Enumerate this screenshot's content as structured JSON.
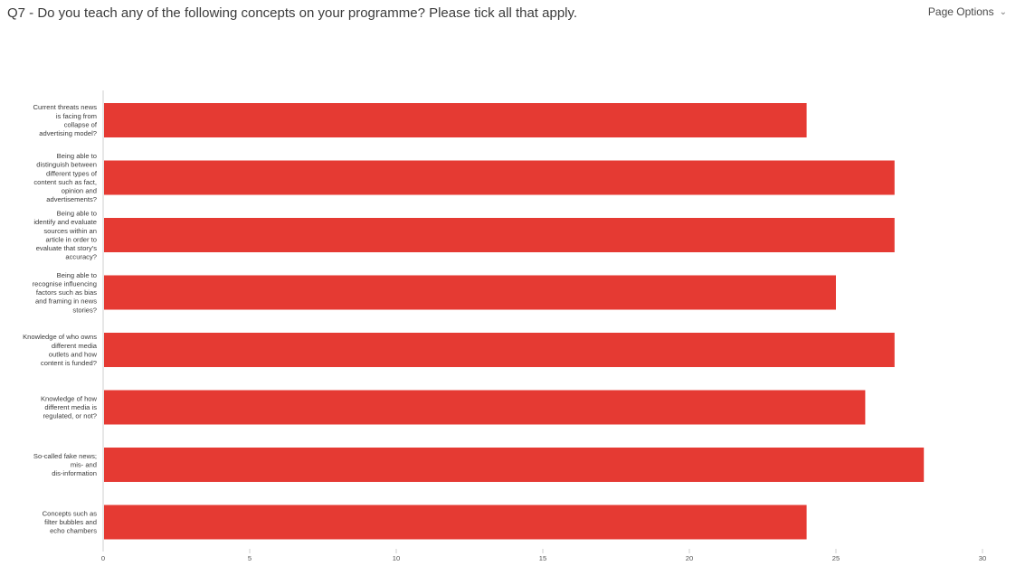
{
  "header": {
    "question_title": "Q7 - Do you teach any of the following concepts on your programme? Please tick all that apply.",
    "page_options_label": "Page Options",
    "page_options_icon": "chevron-down-icon"
  },
  "colors": {
    "bar": "#e53a33",
    "axis": "#cfcfcf"
  },
  "chart_data": {
    "type": "bar",
    "orientation": "horizontal",
    "categories": [
      [
        "Current threats news",
        "is facing from",
        "collapse of",
        "advertising model?"
      ],
      [
        "Being able to",
        "distinguish between",
        "different types of",
        "content such as fact,",
        "opinion and",
        "advertisements?"
      ],
      [
        "Being able to",
        "identify and evaluate",
        "sources within an",
        "article in order to",
        "evaluate that story's",
        "accuracy?"
      ],
      [
        "Being able to",
        "recognise influencing",
        "factors such as bias",
        "and framing in news",
        "stories?"
      ],
      [
        "Knowledge of who owns",
        "different media",
        "outlets and how",
        "content is funded?"
      ],
      [
        "Knowledge of how",
        "different media is",
        "regulated, or not?"
      ],
      [
        "So-called fake news;",
        "mis- and",
        "dis-information"
      ],
      [
        "Concepts such as",
        "filter bubbles and",
        "echo chambers"
      ]
    ],
    "values": [
      24,
      27,
      27,
      25,
      27,
      26,
      28,
      24
    ],
    "xlim": [
      0,
      30
    ],
    "xticks": [
      "0",
      "5",
      "10",
      "15",
      "20",
      "25",
      "30"
    ],
    "xtick_values": [
      0,
      5,
      10,
      15,
      20,
      25,
      30
    ],
    "grid": false,
    "legend": "none"
  }
}
